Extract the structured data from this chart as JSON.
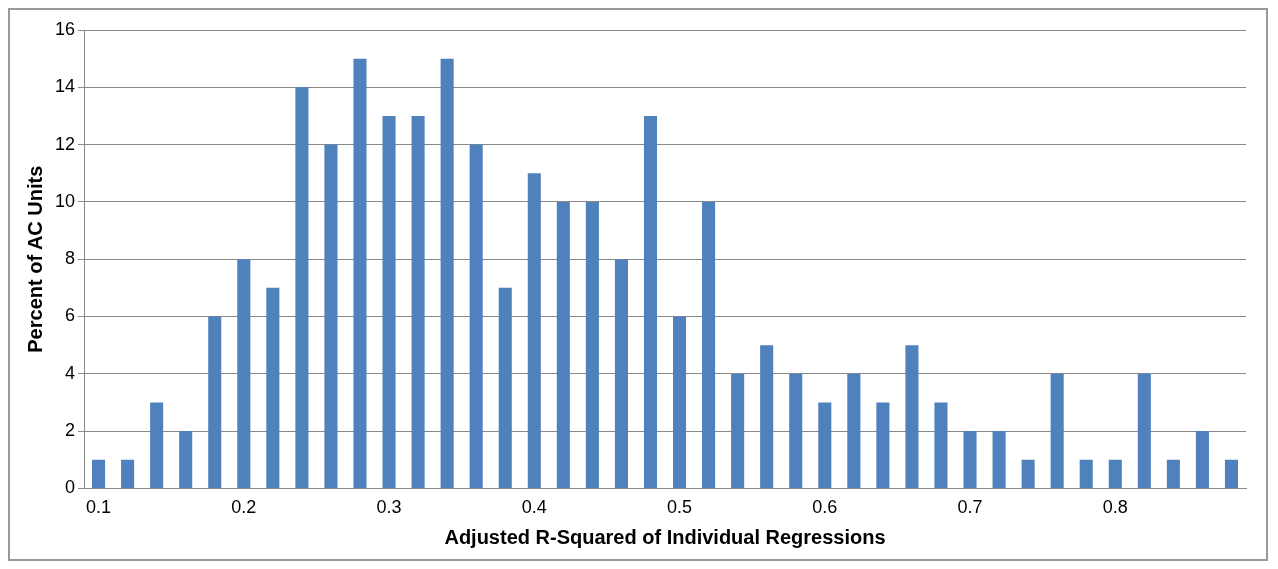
{
  "chart_data": {
    "type": "bar",
    "xlabel": "Adjusted R-Squared of Individual Regressions",
    "ylabel": "Percent of AC Units",
    "categories": [
      "0.1",
      null,
      null,
      null,
      null,
      "0.2",
      null,
      null,
      null,
      null,
      "0.3",
      null,
      null,
      null,
      null,
      "0.4",
      null,
      null,
      null,
      null,
      "0.5",
      null,
      null,
      null,
      null,
      "0.6",
      null,
      null,
      null,
      null,
      "0.7",
      null,
      null,
      null,
      null,
      "0.8",
      null,
      null,
      null,
      null
    ],
    "values": [
      1,
      1,
      3,
      2,
      6,
      8,
      7,
      14,
      12,
      15,
      13,
      13,
      15,
      12,
      7,
      11,
      10,
      10,
      8,
      13,
      6,
      10,
      4,
      5,
      4,
      3,
      4,
      3,
      5,
      3,
      2,
      2,
      1,
      4,
      1,
      1,
      4,
      1,
      2,
      1
    ],
    "color": "#4f81bd",
    "ylim": [
      0,
      16
    ],
    "yticks": [
      0,
      2,
      4,
      6,
      8,
      10,
      12,
      14,
      16
    ],
    "grid": "y",
    "legend": false
  }
}
